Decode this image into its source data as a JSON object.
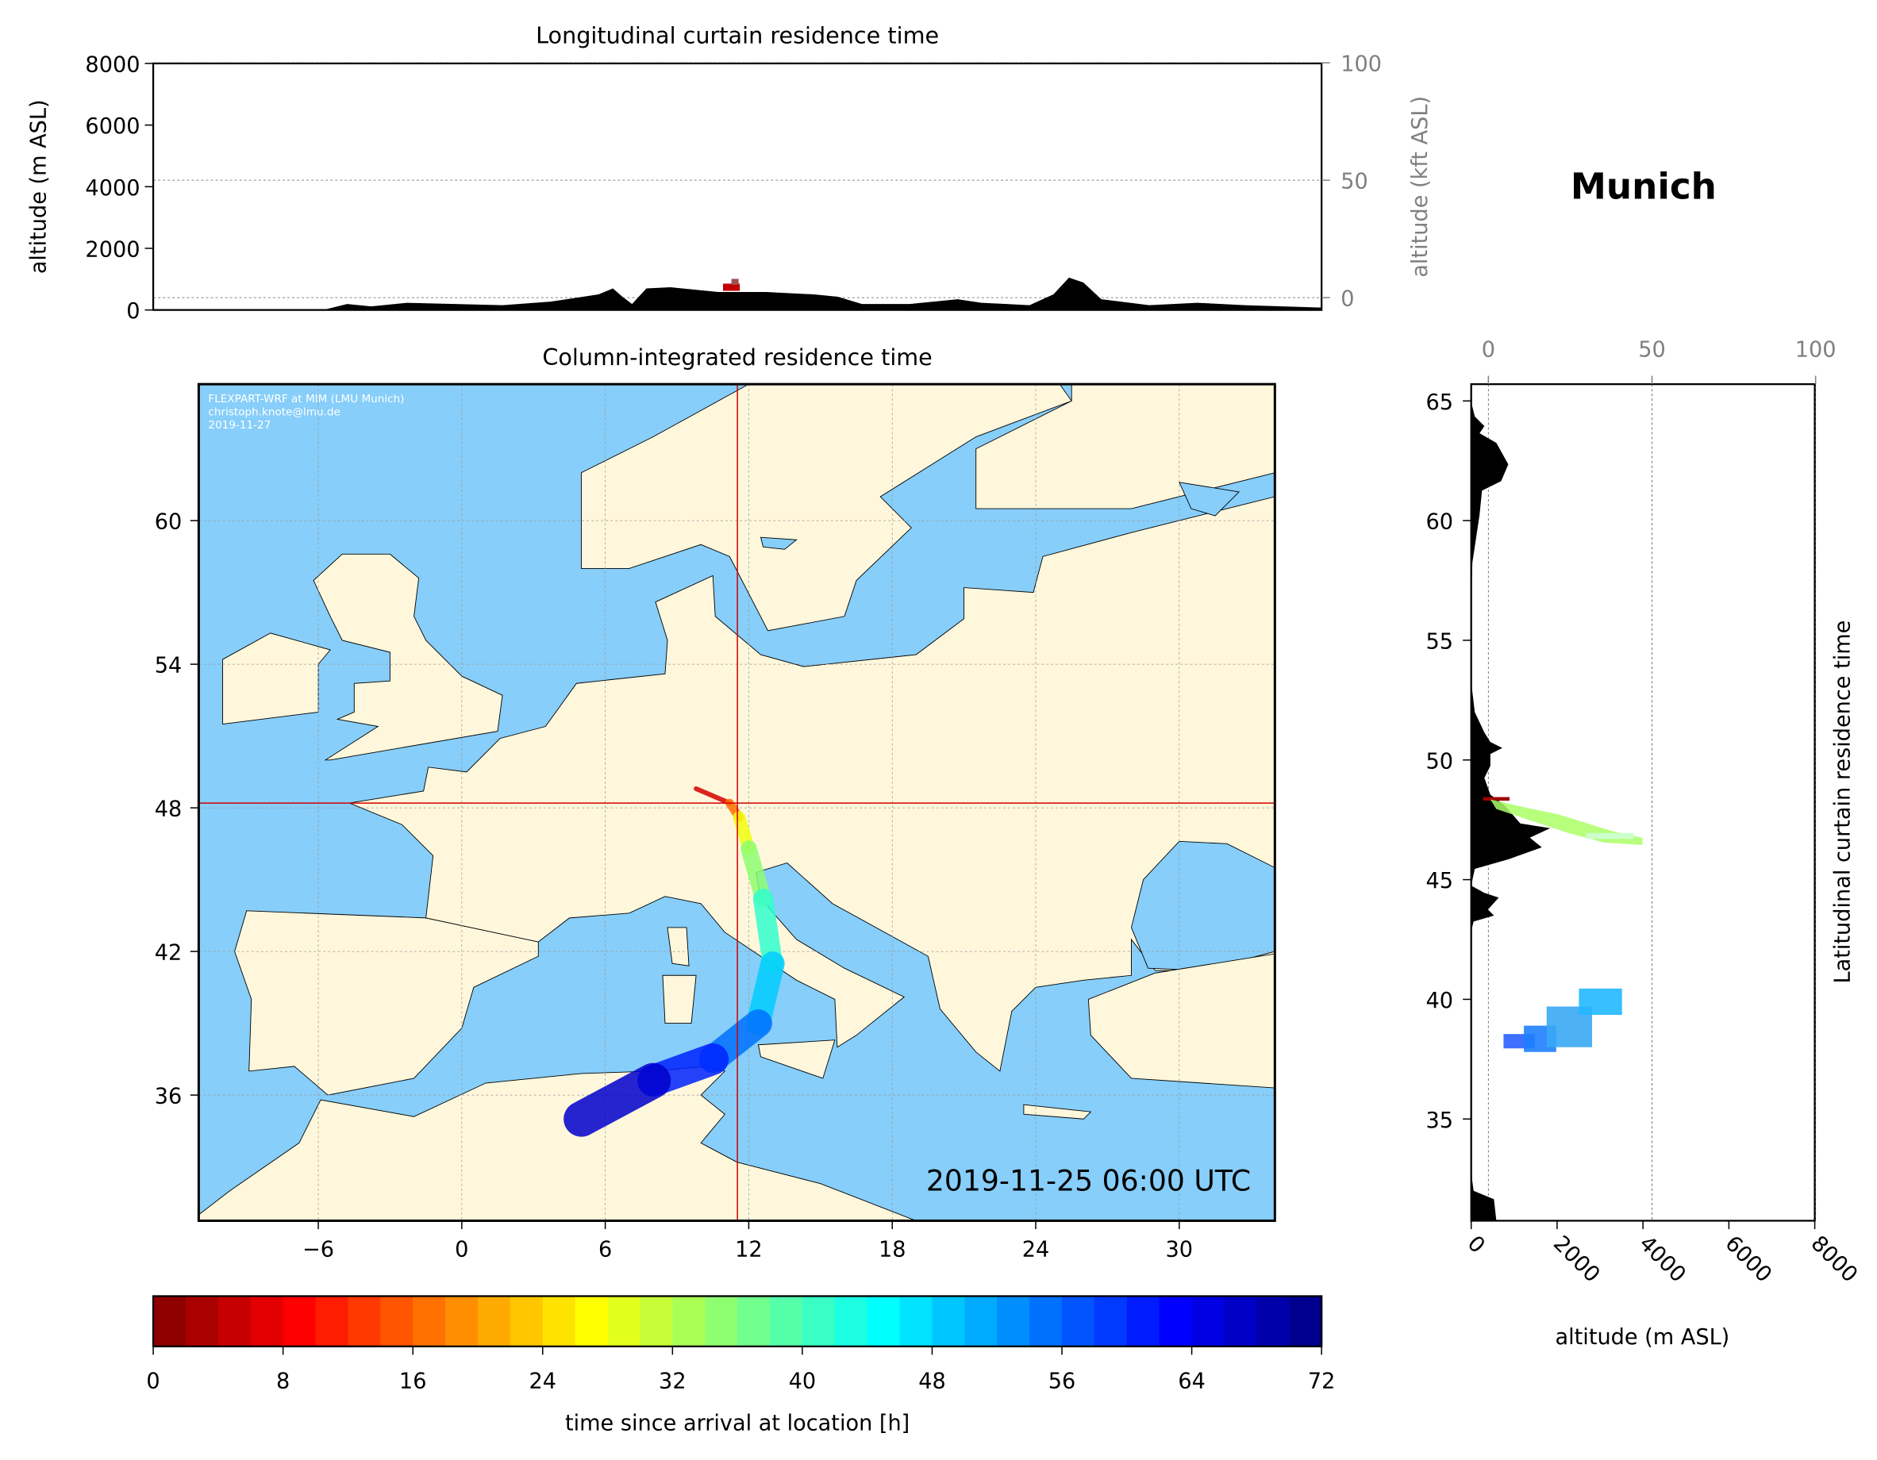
{
  "location_title": "Munich",
  "chart_data": [
    {
      "type": "area",
      "id": "longitudinal",
      "title": "Longitudinal curtain residence time",
      "ylabel": "altitude (m ASL)",
      "ylabel_right": "altitude (kft ASL)",
      "ylim": [
        0,
        8000
      ],
      "yticks": [
        0,
        2000,
        4000,
        6000,
        8000
      ],
      "yticks_right": [
        0,
        50,
        100
      ],
      "grid": true
    },
    {
      "type": "heatmap",
      "id": "map",
      "title": "Column-integrated residence time",
      "xlim": [
        -11,
        34
      ],
      "ylim": [
        30.75,
        65.7
      ],
      "xticks": [
        -6,
        0,
        6,
        12,
        18,
        24,
        30
      ],
      "yticks": [
        36,
        42,
        48,
        54,
        60
      ],
      "grid": true,
      "release_point": {
        "lon": 11.6,
        "lat": 48.2
      },
      "credit": [
        "FLEXPART-WRF at MIM (LMU Munich)",
        "christoph.knote@lmu.de",
        "2019-11-27"
      ],
      "timestamp": "2019-11-25 06:00 UTC",
      "trajectory": [
        {
          "lon": 9.8,
          "lat": 48.8,
          "hours": 2
        },
        {
          "lon": 11.2,
          "lat": 48.2,
          "hours": 10
        },
        {
          "lon": 11.6,
          "lat": 47.6,
          "hours": 24
        },
        {
          "lon": 12.0,
          "lat": 46.3,
          "hours": 32
        },
        {
          "lon": 12.6,
          "lat": 44.2,
          "hours": 38
        },
        {
          "lon": 13.0,
          "lat": 41.5,
          "hours": 45
        },
        {
          "lon": 12.4,
          "lat": 39.0,
          "hours": 52
        },
        {
          "lon": 10.5,
          "lat": 37.5,
          "hours": 58
        },
        {
          "lon": 8.0,
          "lat": 36.6,
          "hours": 63
        },
        {
          "lon": 5.0,
          "lat": 35.0,
          "hours": 70
        }
      ]
    },
    {
      "type": "area",
      "id": "latitudinal",
      "ylabel_right": "Latitudinal curtain residence time",
      "xlabel": "altitude (m ASL)",
      "xlim": [
        0,
        8000
      ],
      "xticks": [
        0,
        2000,
        4000,
        6000,
        8000
      ],
      "xticks_top": [
        0,
        50,
        100
      ],
      "ylim": [
        30.75,
        65.7
      ],
      "yticks": [
        35,
        40,
        45,
        50,
        55,
        60,
        65
      ]
    },
    {
      "type": "colorbar",
      "id": "colorbar",
      "label": "time since arrival at location [h]",
      "range": [
        0,
        72
      ],
      "ticks": [
        0,
        8,
        16,
        24,
        32,
        40,
        48,
        56,
        64,
        72
      ],
      "colormap": "jet"
    }
  ],
  "colors": {
    "ocean": "#87cefa",
    "land": "#fff7dc",
    "crosshair": "#d00000",
    "secondary_axis": "#808080"
  }
}
